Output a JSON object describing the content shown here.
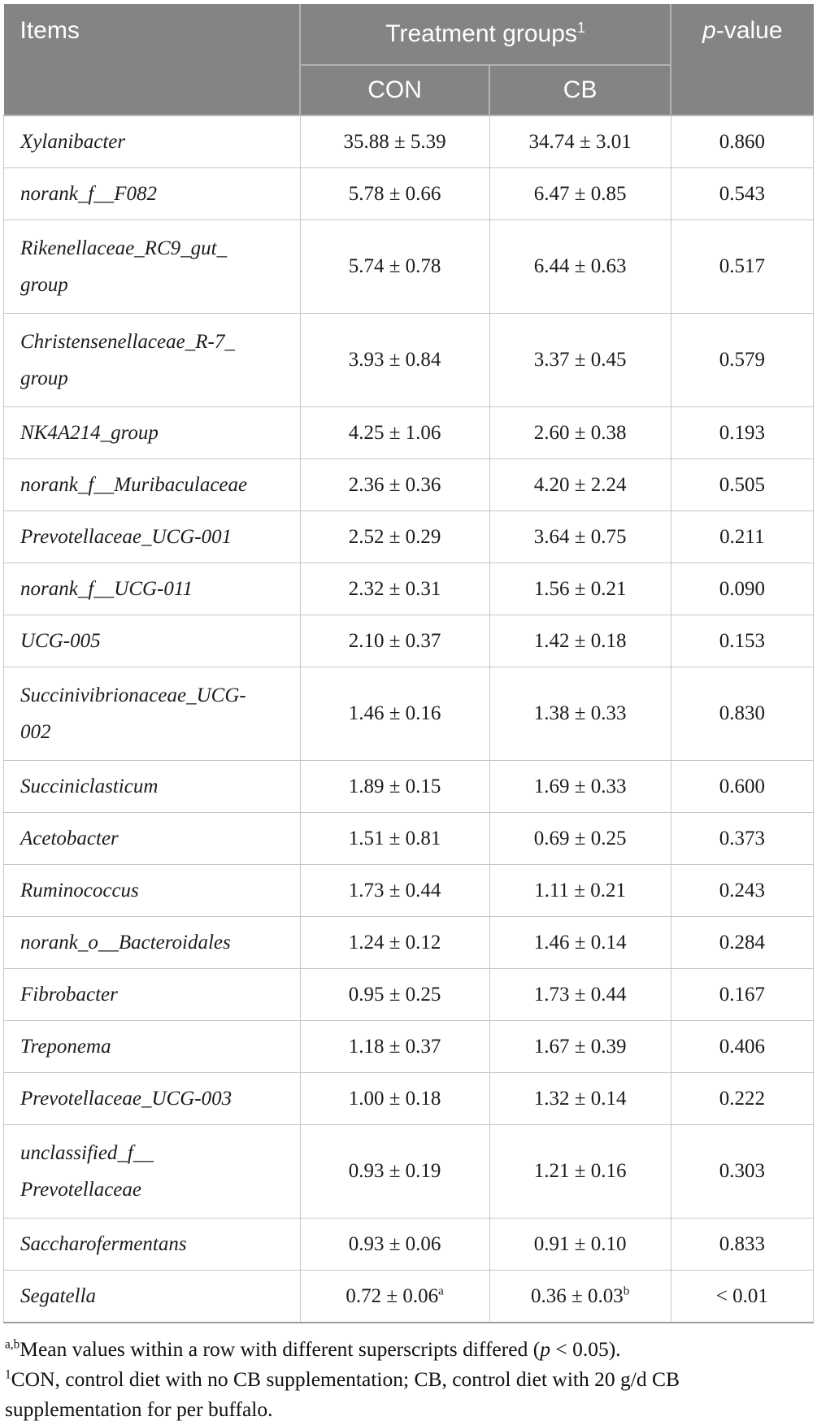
{
  "table": {
    "header": {
      "items": "Items",
      "treatment_groups": "Treatment groups",
      "treatment_groups_sup": "1",
      "con": "CON",
      "cb": "CB",
      "p_italic": "p",
      "p_rest": "-value"
    },
    "rows": [
      {
        "item_lines": [
          "Xylanibacter"
        ],
        "con": "35.88 ± 5.39",
        "cb": "34.74 ± 3.01",
        "p": "0.860"
      },
      {
        "item_lines": [
          "norank_f__F082"
        ],
        "con": "5.78 ± 0.66",
        "cb": "6.47 ± 0.85",
        "p": "0.543"
      },
      {
        "item_lines": [
          "Rikenellaceae_RC9_gut_",
          "group"
        ],
        "con": "5.74 ± 0.78",
        "cb": "6.44 ± 0.63",
        "p": "0.517"
      },
      {
        "item_lines": [
          "Christensenellaceae_R-7_",
          "group"
        ],
        "con": "3.93 ± 0.84",
        "cb": "3.37 ± 0.45",
        "p": "0.579"
      },
      {
        "item_lines": [
          "NK4A214_group"
        ],
        "con": "4.25 ± 1.06",
        "cb": "2.60 ± 0.38",
        "p": "0.193"
      },
      {
        "item_lines": [
          "norank_f__Muribaculaceae"
        ],
        "con": "2.36 ± 0.36",
        "cb": "4.20 ± 2.24",
        "p": "0.505"
      },
      {
        "item_lines": [
          "Prevotellaceae_UCG-001"
        ],
        "con": "2.52 ± 0.29",
        "cb": "3.64 ± 0.75",
        "p": "0.211"
      },
      {
        "item_lines": [
          "norank_f__UCG-011"
        ],
        "con": "2.32 ± 0.31",
        "cb": "1.56 ± 0.21",
        "p": "0.090"
      },
      {
        "item_lines": [
          "UCG-005"
        ],
        "con": "2.10 ± 0.37",
        "cb": "1.42 ± 0.18",
        "p": "0.153"
      },
      {
        "item_lines": [
          "Succinivibrionaceae_UCG-",
          "002"
        ],
        "con": "1.46 ± 0.16",
        "cb": "1.38 ± 0.33",
        "p": "0.830"
      },
      {
        "item_lines": [
          "Succiniclasticum"
        ],
        "con": "1.89 ± 0.15",
        "cb": "1.69 ± 0.33",
        "p": "0.600"
      },
      {
        "item_lines": [
          "Acetobacter"
        ],
        "con": "1.51 ± 0.81",
        "cb": "0.69 ± 0.25",
        "p": "0.373"
      },
      {
        "item_lines": [
          "Ruminococcus"
        ],
        "con": "1.73 ± 0.44",
        "cb": "1.11 ± 0.21",
        "p": "0.243"
      },
      {
        "item_lines": [
          "norank_o__Bacteroidales"
        ],
        "con": "1.24 ± 0.12",
        "cb": "1.46 ± 0.14",
        "p": "0.284"
      },
      {
        "item_lines": [
          "Fibrobacter"
        ],
        "con": "0.95 ± 0.25",
        "cb": "1.73 ± 0.44",
        "p": "0.167"
      },
      {
        "item_lines": [
          "Treponema"
        ],
        "con": "1.18 ± 0.37",
        "cb": "1.67 ± 0.39",
        "p": "0.406"
      },
      {
        "item_lines": [
          "Prevotellaceae_UCG-003"
        ],
        "con": "1.00 ± 0.18",
        "cb": "1.32 ± 0.14",
        "p": "0.222"
      },
      {
        "item_lines": [
          "unclassified_f__",
          "Prevotellaceae"
        ],
        "con": "0.93 ± 0.19",
        "cb": "1.21 ± 0.16",
        "p": "0.303"
      },
      {
        "item_lines": [
          "Saccharofermentans"
        ],
        "con": "0.93 ± 0.06",
        "cb": "0.91 ± 0.10",
        "p": "0.833"
      },
      {
        "item_lines": [
          "Segatella"
        ],
        "con": "0.72 ± 0.06",
        "con_sup": "a",
        "cb": "0.36 ± 0.03",
        "cb_sup": "b",
        "p": "< 0.01"
      }
    ]
  },
  "footnotes": {
    "significance": {
      "sup": "a,b",
      "pre": "Mean values within a row with different superscripts differed (",
      "italic_p": "p",
      "post": " < 0.05)."
    },
    "abbreviations": {
      "sup": "1",
      "text": "CON, control diet with no CB supplementation; CB, control diet with 20 g/d CB supplementation for per buffalo."
    }
  },
  "colors": {
    "header_bg": "#848484",
    "header_text": "#ffffff",
    "grid_line": "#c6c6c6",
    "header_divider": "#b3b3b3",
    "bottom_border": "#9e9e9e",
    "body_text": "#1c1c1c"
  }
}
